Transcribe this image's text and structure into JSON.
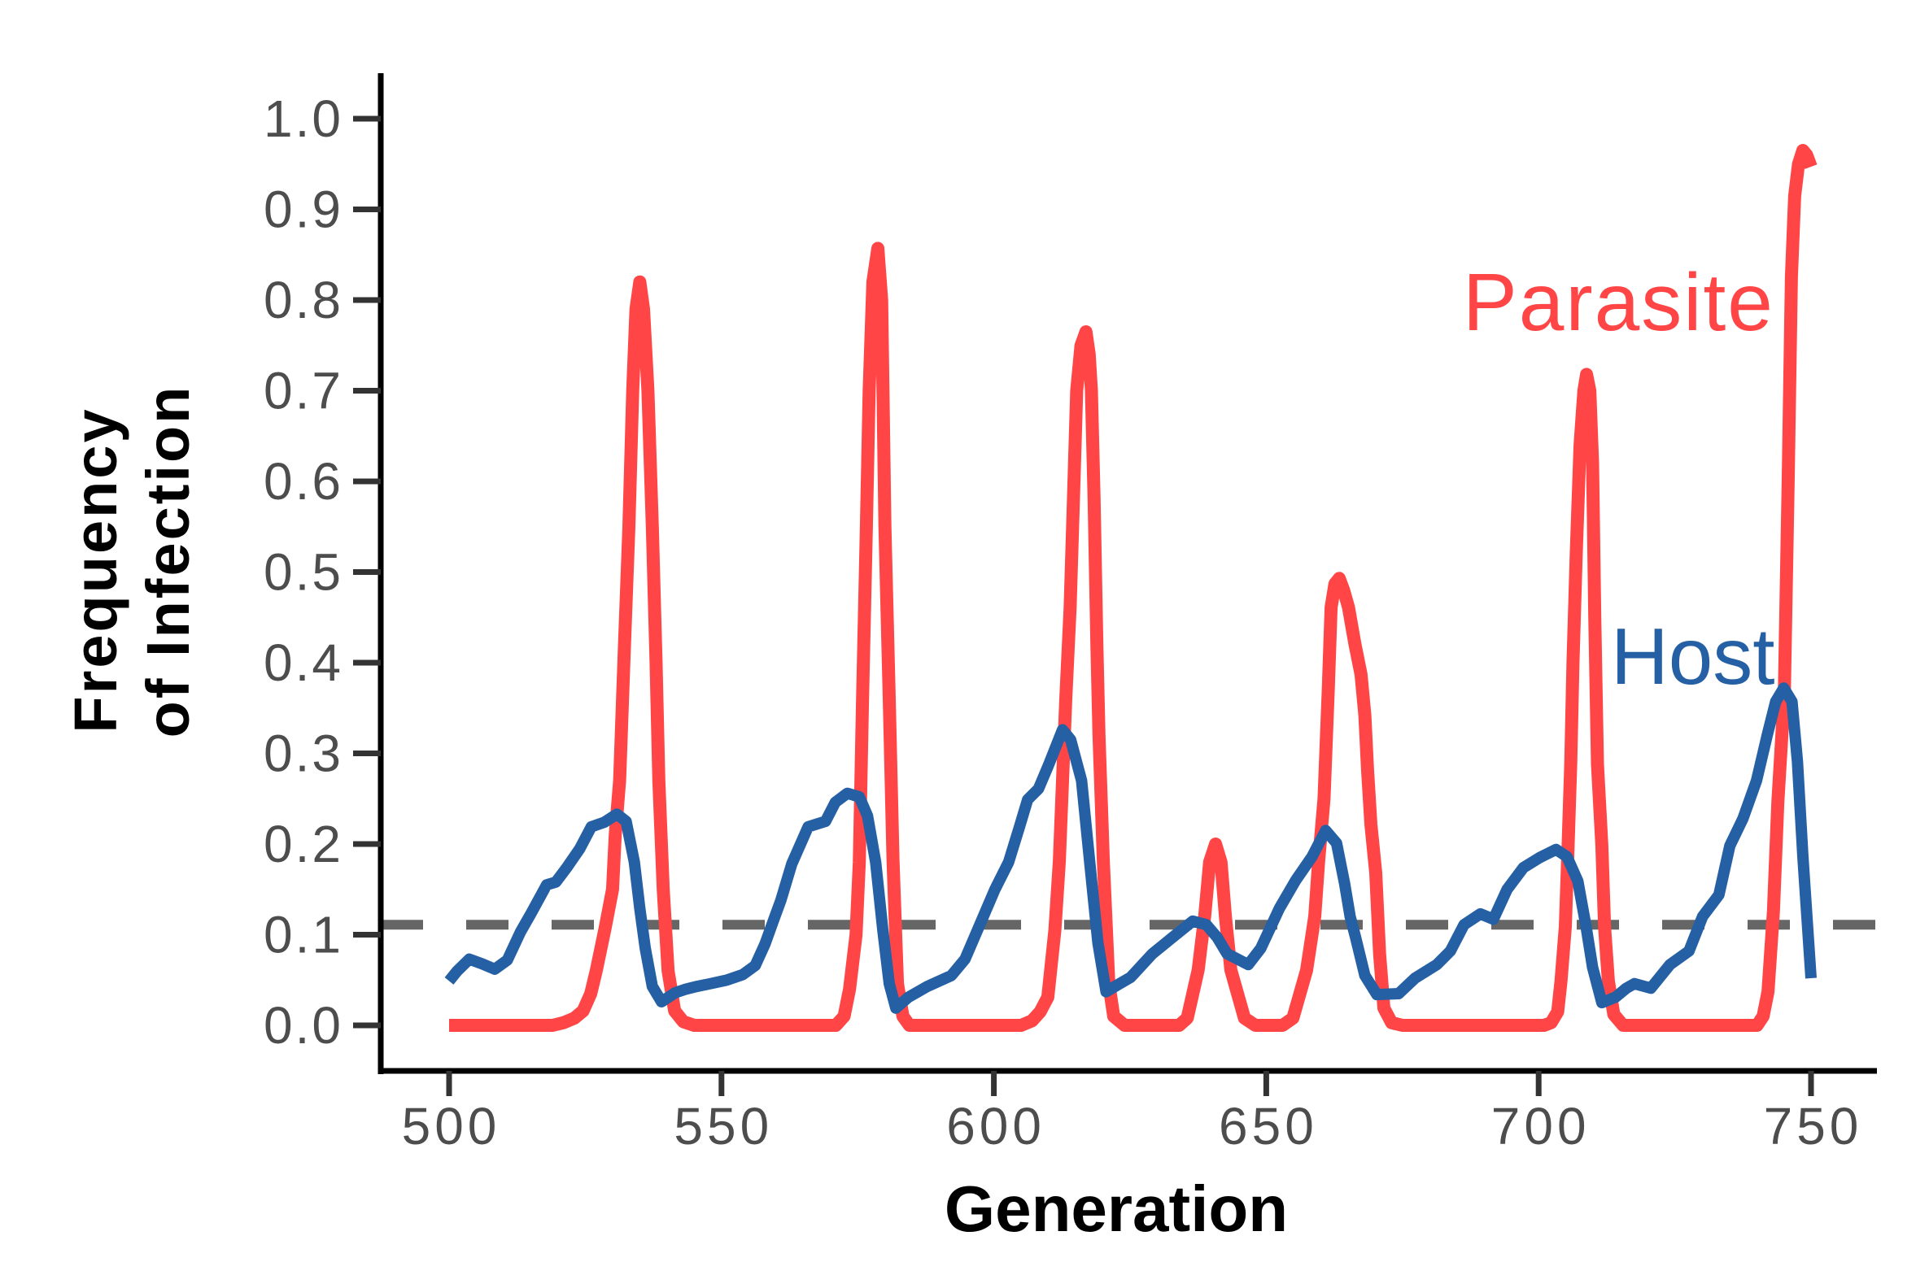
{
  "chart_data": {
    "type": "line",
    "title": "",
    "xlabel": "Generation",
    "ylabel": [
      "Frequency",
      "of Infection"
    ],
    "xlim": [
      500,
      750
    ],
    "ylim": [
      0.0,
      1.0
    ],
    "xticks": [
      500,
      550,
      600,
      650,
      700,
      750
    ],
    "xtick_labels": [
      "500",
      "550",
      "600",
      "650",
      "700",
      "750"
    ],
    "yticks": [
      0.0,
      0.1,
      0.2,
      0.3,
      0.4,
      0.5,
      0.6,
      0.7,
      0.8,
      0.9,
      1.0
    ],
    "ytick_labels": [
      "0.0",
      "0.1",
      "0.2",
      "0.3",
      "0.4",
      "0.5",
      "0.6",
      "0.7",
      "0.8",
      "0.9",
      "1.0"
    ],
    "grid": false,
    "legend": "direct labels",
    "series": [
      {
        "name": "Parasite",
        "color": "#ff4545",
        "points": [
          [
            500,
            0
          ],
          [
            519,
            0
          ],
          [
            521,
            0.003
          ],
          [
            523,
            0.008
          ],
          [
            524.6,
            0.016
          ],
          [
            526,
            0.035
          ],
          [
            527,
            0.06
          ],
          [
            528.6,
            0.106
          ],
          [
            530,
            0.15
          ],
          [
            530.5,
            0.21
          ],
          [
            531.3,
            0.27
          ],
          [
            532.2,
            0.42
          ],
          [
            533,
            0.55
          ],
          [
            533.7,
            0.7
          ],
          [
            534.3,
            0.79
          ],
          [
            535,
            0.82
          ],
          [
            535.7,
            0.79
          ],
          [
            536.5,
            0.7
          ],
          [
            537.3,
            0.55
          ],
          [
            538,
            0.4
          ],
          [
            538.5,
            0.27
          ],
          [
            539.3,
            0.15
          ],
          [
            540.2,
            0.06
          ],
          [
            541.4,
            0.016
          ],
          [
            543,
            0.004
          ],
          [
            545,
            0
          ],
          [
            571,
            0
          ],
          [
            572.5,
            0.01
          ],
          [
            573.5,
            0.04
          ],
          [
            574.7,
            0.1
          ],
          [
            575.3,
            0.18
          ],
          [
            575.9,
            0.36
          ],
          [
            576.6,
            0.55
          ],
          [
            577.1,
            0.7
          ],
          [
            577.8,
            0.82
          ],
          [
            578.7,
            0.857
          ],
          [
            579.4,
            0.8
          ],
          [
            580,
            0.55
          ],
          [
            580.8,
            0.36
          ],
          [
            581.5,
            0.18
          ],
          [
            582.3,
            0.046
          ],
          [
            583.3,
            0.01
          ],
          [
            584.5,
            0
          ],
          [
            605,
            0
          ],
          [
            607,
            0.005
          ],
          [
            608.5,
            0.015
          ],
          [
            609.9,
            0.031
          ],
          [
            611.2,
            0.105
          ],
          [
            612,
            0.18
          ],
          [
            612.6,
            0.27
          ],
          [
            613.2,
            0.36
          ],
          [
            614,
            0.46
          ],
          [
            614.6,
            0.58
          ],
          [
            615.2,
            0.7
          ],
          [
            616,
            0.75
          ],
          [
            616.9,
            0.765
          ],
          [
            617.5,
            0.74
          ],
          [
            617.9,
            0.7
          ],
          [
            618.4,
            0.58
          ],
          [
            618.9,
            0.42
          ],
          [
            619.3,
            0.32
          ],
          [
            620.1,
            0.18
          ],
          [
            621.1,
            0.046
          ],
          [
            622,
            0.01
          ],
          [
            624,
            0
          ],
          [
            634,
            0
          ],
          [
            635.5,
            0.008
          ],
          [
            637.5,
            0.061
          ],
          [
            638.7,
            0.12
          ],
          [
            639.6,
            0.18
          ],
          [
            640.7,
            0.2
          ],
          [
            641.7,
            0.18
          ],
          [
            642.5,
            0.12
          ],
          [
            643.5,
            0.061
          ],
          [
            646,
            0.008
          ],
          [
            648,
            0
          ],
          [
            653,
            0
          ],
          [
            654.9,
            0.008
          ],
          [
            657.4,
            0.061
          ],
          [
            658.9,
            0.12
          ],
          [
            659.6,
            0.18
          ],
          [
            660.6,
            0.25
          ],
          [
            661.4,
            0.372
          ],
          [
            661.9,
            0.461
          ],
          [
            662.6,
            0.487
          ],
          [
            663.4,
            0.493
          ],
          [
            664.2,
            0.48
          ],
          [
            665.1,
            0.461
          ],
          [
            666.3,
            0.42
          ],
          [
            667.4,
            0.387
          ],
          [
            668.1,
            0.342
          ],
          [
            668.6,
            0.282
          ],
          [
            669.2,
            0.222
          ],
          [
            670.1,
            0.168
          ],
          [
            670.8,
            0.079
          ],
          [
            671.6,
            0.019
          ],
          [
            673,
            0.003
          ],
          [
            675,
            0
          ],
          [
            701,
            0
          ],
          [
            702.3,
            0.003
          ],
          [
            703.5,
            0.015
          ],
          [
            704.1,
            0.049
          ],
          [
            704.9,
            0.109
          ],
          [
            705.4,
            0.198
          ],
          [
            705.9,
            0.29
          ],
          [
            706.3,
            0.4
          ],
          [
            706.9,
            0.52
          ],
          [
            707.6,
            0.64
          ],
          [
            708.3,
            0.7
          ],
          [
            708.8,
            0.718
          ],
          [
            709.4,
            0.7
          ],
          [
            709.9,
            0.62
          ],
          [
            710.3,
            0.45
          ],
          [
            710.8,
            0.288
          ],
          [
            711.6,
            0.198
          ],
          [
            712.1,
            0.109
          ],
          [
            712.8,
            0.049
          ],
          [
            713.8,
            0.012
          ],
          [
            715.5,
            0
          ],
          [
            740.1,
            0
          ],
          [
            741.2,
            0.01
          ],
          [
            742.1,
            0.037
          ],
          [
            743.1,
            0.126
          ],
          [
            743.9,
            0.246
          ],
          [
            745.1,
            0.366
          ],
          [
            745.8,
            0.6
          ],
          [
            746.4,
            0.826
          ],
          [
            747,
            0.915
          ],
          [
            747.7,
            0.95
          ],
          [
            748.5,
            0.965
          ],
          [
            749.2,
            0.96
          ],
          [
            750,
            0.947
          ]
        ]
      },
      {
        "name": "Host",
        "color": "#2660a4",
        "points": [
          [
            500,
            0.049
          ],
          [
            501.5,
            0.06
          ],
          [
            503.7,
            0.073
          ],
          [
            506,
            0.068
          ],
          [
            508.4,
            0.062
          ],
          [
            510.7,
            0.072
          ],
          [
            513.1,
            0.103
          ],
          [
            515.1,
            0.124
          ],
          [
            517.9,
            0.155
          ],
          [
            519.6,
            0.158
          ],
          [
            521.6,
            0.174
          ],
          [
            524,
            0.195
          ],
          [
            526.1,
            0.219
          ],
          [
            528.5,
            0.224
          ],
          [
            530.8,
            0.233
          ],
          [
            532.5,
            0.225
          ],
          [
            534,
            0.18
          ],
          [
            535,
            0.129
          ],
          [
            536,
            0.085
          ],
          [
            537.3,
            0.043
          ],
          [
            539,
            0.026
          ],
          [
            541.5,
            0.036
          ],
          [
            543.5,
            0.04
          ],
          [
            545.5,
            0.043
          ],
          [
            548,
            0.046
          ],
          [
            551,
            0.05
          ],
          [
            553.9,
            0.056
          ],
          [
            556.2,
            0.066
          ],
          [
            558,
            0.09
          ],
          [
            559.5,
            0.115
          ],
          [
            560.9,
            0.138
          ],
          [
            562.9,
            0.178
          ],
          [
            565.9,
            0.219
          ],
          [
            569.1,
            0.225
          ],
          [
            570.9,
            0.246
          ],
          [
            573.1,
            0.256
          ],
          [
            575.3,
            0.252
          ],
          [
            576.8,
            0.231
          ],
          [
            578.3,
            0.18
          ],
          [
            579.6,
            0.106
          ],
          [
            580.8,
            0.046
          ],
          [
            582,
            0.019
          ],
          [
            584.3,
            0.031
          ],
          [
            587.8,
            0.043
          ],
          [
            592.2,
            0.055
          ],
          [
            594.7,
            0.073
          ],
          [
            597.7,
            0.115
          ],
          [
            600.2,
            0.15
          ],
          [
            602.7,
            0.18
          ],
          [
            604.7,
            0.219
          ],
          [
            606.2,
            0.249
          ],
          [
            608.2,
            0.261
          ],
          [
            610.1,
            0.288
          ],
          [
            612.6,
            0.326
          ],
          [
            614.1,
            0.315
          ],
          [
            616.1,
            0.27
          ],
          [
            617.6,
            0.18
          ],
          [
            619.1,
            0.091
          ],
          [
            620.6,
            0.037
          ],
          [
            623.1,
            0.046
          ],
          [
            625.1,
            0.053
          ],
          [
            629.1,
            0.079
          ],
          [
            633,
            0.098
          ],
          [
            636.5,
            0.115
          ],
          [
            639,
            0.111
          ],
          [
            641,
            0.097
          ],
          [
            642.8,
            0.079
          ],
          [
            646.7,
            0.067
          ],
          [
            649,
            0.085
          ],
          [
            652.4,
            0.129
          ],
          [
            655.4,
            0.16
          ],
          [
            658.4,
            0.186
          ],
          [
            660.9,
            0.215
          ],
          [
            662.9,
            0.201
          ],
          [
            664.4,
            0.156
          ],
          [
            665.4,
            0.12
          ],
          [
            666.4,
            0.097
          ],
          [
            668.1,
            0.055
          ],
          [
            670.3,
            0.034
          ],
          [
            674.3,
            0.035
          ],
          [
            677.3,
            0.052
          ],
          [
            681.3,
            0.067
          ],
          [
            683.8,
            0.082
          ],
          [
            686.3,
            0.111
          ],
          [
            689.3,
            0.123
          ],
          [
            691.7,
            0.117
          ],
          [
            694.2,
            0.15
          ],
          [
            697.2,
            0.174
          ],
          [
            700.2,
            0.185
          ],
          [
            703.2,
            0.194
          ],
          [
            705.2,
            0.186
          ],
          [
            707.2,
            0.159
          ],
          [
            708.7,
            0.109
          ],
          [
            709.9,
            0.064
          ],
          [
            711.6,
            0.025
          ],
          [
            714.1,
            0.031
          ],
          [
            716.1,
            0.041
          ],
          [
            717.6,
            0.046
          ],
          [
            720.6,
            0.041
          ],
          [
            724.1,
            0.067
          ],
          [
            727.6,
            0.082
          ],
          [
            730.1,
            0.12
          ],
          [
            733.1,
            0.144
          ],
          [
            735.1,
            0.198
          ],
          [
            737.5,
            0.228
          ],
          [
            740,
            0.27
          ],
          [
            742,
            0.321
          ],
          [
            743.5,
            0.357
          ],
          [
            745,
            0.372
          ],
          [
            746.5,
            0.357
          ],
          [
            747.5,
            0.291
          ],
          [
            748.5,
            0.186
          ],
          [
            750,
            0.052
          ]
        ]
      }
    ],
    "reference_lines": [
      {
        "orientation": "horizontal",
        "y": 0.111,
        "style": "dashed",
        "color": "#666666"
      }
    ],
    "colors": {
      "axis": "#000000",
      "tick_mark": "#333333",
      "tick_label": "#4d4d4d"
    }
  }
}
